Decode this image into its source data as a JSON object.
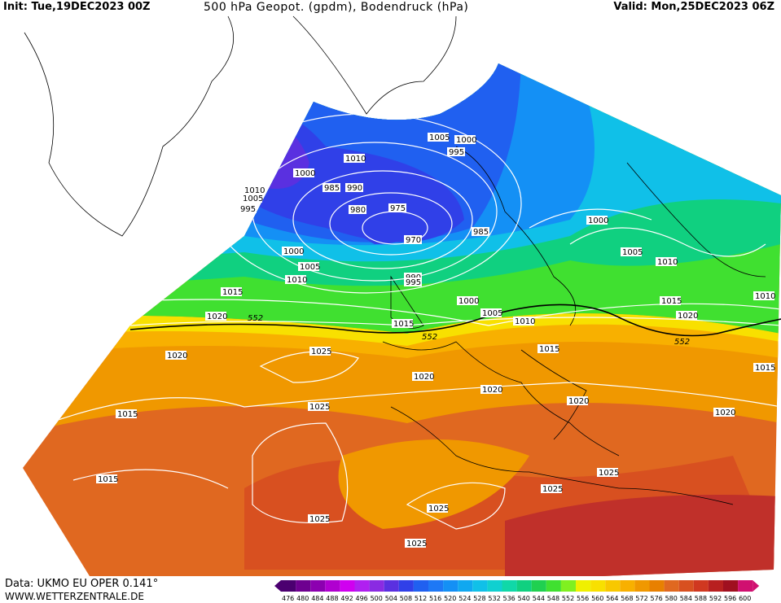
{
  "header": {
    "init": "Init: Tue,19DEC2023 00Z",
    "title": "500 hPa Geopot. (gpdm), Bodendruck (hPa)",
    "valid": "Valid: Mon,25DEC2023 06Z"
  },
  "footer": {
    "data_source": "Data: UKMO EU OPER 0.141°",
    "website": "WWW.WETTERZENTRALE.DE"
  },
  "legend": {
    "values": [
      "476",
      "480",
      "484",
      "488",
      "492",
      "496",
      "500",
      "504",
      "508",
      "512",
      "516",
      "520",
      "524",
      "528",
      "532",
      "536",
      "540",
      "544",
      "548",
      "552",
      "556",
      "560",
      "564",
      "568",
      "572",
      "576",
      "580",
      "584",
      "588",
      "592",
      "596",
      "600"
    ],
    "colors": [
      "#4b0070",
      "#6e0090",
      "#8c00b0",
      "#b000d0",
      "#d000f0",
      "#b020f0",
      "#8a2be2",
      "#5a30e0",
      "#3040e8",
      "#2060f0",
      "#1e78f5",
      "#1490f5",
      "#10a8f0",
      "#10c0e8",
      "#10d0d0",
      "#10d8a8",
      "#10d080",
      "#20d050",
      "#40e030",
      "#80f020",
      "#f0f000",
      "#f8e000",
      "#f8c800",
      "#f8b000",
      "#f09800",
      "#e88000",
      "#e06820",
      "#d85020",
      "#d03820",
      "#b82020",
      "#a01020",
      "#d01070"
    ]
  },
  "map": {
    "contour_value_552": "552",
    "isobar_labels": [
      "1010",
      "1005",
      "995",
      "1000",
      "1010",
      "985",
      "990",
      "980",
      "975",
      "970",
      "1005",
      "1000",
      "995",
      "985",
      "1000",
      "1005",
      "1010",
      "1015",
      "990",
      "995",
      "1000",
      "1005",
      "1015",
      "1020",
      "552",
      "552",
      "1010",
      "1015",
      "1020",
      "1025",
      "1020",
      "1020",
      "1025",
      "1020",
      "1015",
      "1015",
      "1025",
      "1020",
      "1025",
      "1025",
      "1025",
      "1025",
      "1000",
      "1005",
      "1010",
      "1015",
      "1020",
      "1010",
      "1015",
      "552",
      "1020",
      "1015"
    ]
  }
}
